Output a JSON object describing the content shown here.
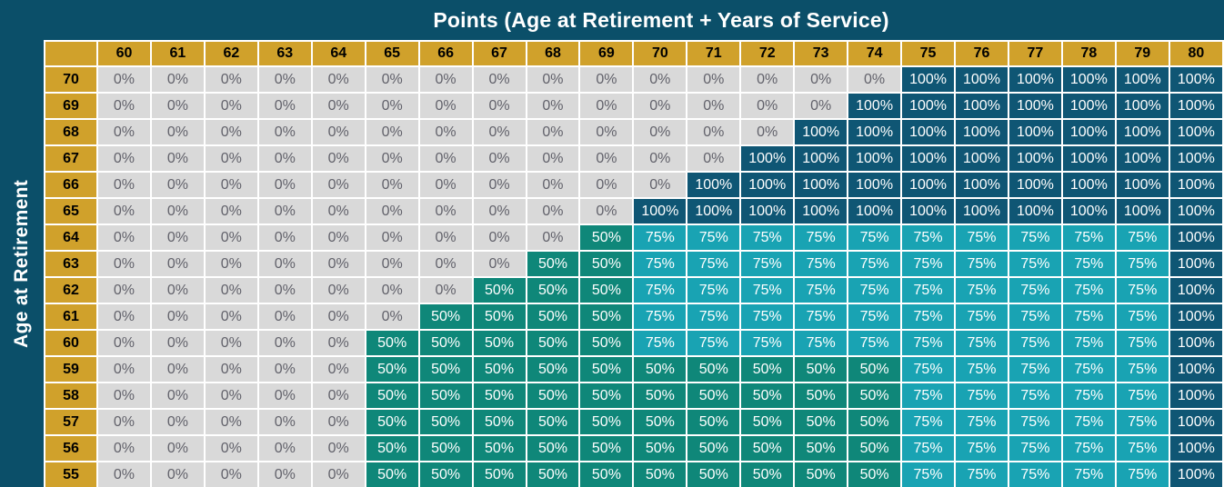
{
  "title": "Points (Age at Retirement + Years of Service)",
  "y_axis_label": "Age at Retirement",
  "colors": {
    "page_background": "#0B4F69",
    "header_gold": "#D0A12B",
    "header_text": "#000000",
    "grid_border": "#FFFFFF",
    "cell_0_bg": "#D9D9D9",
    "cell_0_text": "#62626B",
    "cell_50_bg": "#0F8779",
    "cell_75_bg": "#19A3B3",
    "cell_100_bg": "#0F5674",
    "cell_value_text": "#FFFFFF"
  },
  "chart_data": {
    "type": "heatmap",
    "title": "Points (Age at Retirement + Years of Service)",
    "x_label": "Points (Age at Retirement + Years of Service)",
    "y_label": "Age at Retirement",
    "columns": [
      "60",
      "61",
      "62",
      "63",
      "64",
      "65",
      "66",
      "67",
      "68",
      "69",
      "70",
      "71",
      "72",
      "73",
      "74",
      "75",
      "76",
      "77",
      "78",
      "79",
      "80"
    ],
    "rows": [
      {
        "age": "70",
        "values": [
          "0%",
          "0%",
          "0%",
          "0%",
          "0%",
          "0%",
          "0%",
          "0%",
          "0%",
          "0%",
          "0%",
          "0%",
          "0%",
          "0%",
          "0%",
          "100%",
          "100%",
          "100%",
          "100%",
          "100%",
          "100%"
        ]
      },
      {
        "age": "69",
        "values": [
          "0%",
          "0%",
          "0%",
          "0%",
          "0%",
          "0%",
          "0%",
          "0%",
          "0%",
          "0%",
          "0%",
          "0%",
          "0%",
          "0%",
          "100%",
          "100%",
          "100%",
          "100%",
          "100%",
          "100%",
          "100%"
        ]
      },
      {
        "age": "68",
        "values": [
          "0%",
          "0%",
          "0%",
          "0%",
          "0%",
          "0%",
          "0%",
          "0%",
          "0%",
          "0%",
          "0%",
          "0%",
          "0%",
          "100%",
          "100%",
          "100%",
          "100%",
          "100%",
          "100%",
          "100%",
          "100%"
        ]
      },
      {
        "age": "67",
        "values": [
          "0%",
          "0%",
          "0%",
          "0%",
          "0%",
          "0%",
          "0%",
          "0%",
          "0%",
          "0%",
          "0%",
          "0%",
          "100%",
          "100%",
          "100%",
          "100%",
          "100%",
          "100%",
          "100%",
          "100%",
          "100%"
        ]
      },
      {
        "age": "66",
        "values": [
          "0%",
          "0%",
          "0%",
          "0%",
          "0%",
          "0%",
          "0%",
          "0%",
          "0%",
          "0%",
          "0%",
          "100%",
          "100%",
          "100%",
          "100%",
          "100%",
          "100%",
          "100%",
          "100%",
          "100%",
          "100%"
        ]
      },
      {
        "age": "65",
        "values": [
          "0%",
          "0%",
          "0%",
          "0%",
          "0%",
          "0%",
          "0%",
          "0%",
          "0%",
          "0%",
          "100%",
          "100%",
          "100%",
          "100%",
          "100%",
          "100%",
          "100%",
          "100%",
          "100%",
          "100%",
          "100%"
        ]
      },
      {
        "age": "64",
        "values": [
          "0%",
          "0%",
          "0%",
          "0%",
          "0%",
          "0%",
          "0%",
          "0%",
          "0%",
          "50%",
          "75%",
          "75%",
          "75%",
          "75%",
          "75%",
          "75%",
          "75%",
          "75%",
          "75%",
          "75%",
          "100%"
        ]
      },
      {
        "age": "63",
        "values": [
          "0%",
          "0%",
          "0%",
          "0%",
          "0%",
          "0%",
          "0%",
          "0%",
          "50%",
          "50%",
          "75%",
          "75%",
          "75%",
          "75%",
          "75%",
          "75%",
          "75%",
          "75%",
          "75%",
          "75%",
          "100%"
        ]
      },
      {
        "age": "62",
        "values": [
          "0%",
          "0%",
          "0%",
          "0%",
          "0%",
          "0%",
          "0%",
          "50%",
          "50%",
          "50%",
          "75%",
          "75%",
          "75%",
          "75%",
          "75%",
          "75%",
          "75%",
          "75%",
          "75%",
          "75%",
          "100%"
        ]
      },
      {
        "age": "61",
        "values": [
          "0%",
          "0%",
          "0%",
          "0%",
          "0%",
          "0%",
          "50%",
          "50%",
          "50%",
          "50%",
          "75%",
          "75%",
          "75%",
          "75%",
          "75%",
          "75%",
          "75%",
          "75%",
          "75%",
          "75%",
          "100%"
        ]
      },
      {
        "age": "60",
        "values": [
          "0%",
          "0%",
          "0%",
          "0%",
          "0%",
          "50%",
          "50%",
          "50%",
          "50%",
          "50%",
          "75%",
          "75%",
          "75%",
          "75%",
          "75%",
          "75%",
          "75%",
          "75%",
          "75%",
          "75%",
          "100%"
        ]
      },
      {
        "age": "59",
        "values": [
          "0%",
          "0%",
          "0%",
          "0%",
          "0%",
          "50%",
          "50%",
          "50%",
          "50%",
          "50%",
          "50%",
          "50%",
          "50%",
          "50%",
          "50%",
          "75%",
          "75%",
          "75%",
          "75%",
          "75%",
          "100%"
        ]
      },
      {
        "age": "58",
        "values": [
          "0%",
          "0%",
          "0%",
          "0%",
          "0%",
          "50%",
          "50%",
          "50%",
          "50%",
          "50%",
          "50%",
          "50%",
          "50%",
          "50%",
          "50%",
          "75%",
          "75%",
          "75%",
          "75%",
          "75%",
          "100%"
        ]
      },
      {
        "age": "57",
        "values": [
          "0%",
          "0%",
          "0%",
          "0%",
          "0%",
          "50%",
          "50%",
          "50%",
          "50%",
          "50%",
          "50%",
          "50%",
          "50%",
          "50%",
          "50%",
          "75%",
          "75%",
          "75%",
          "75%",
          "75%",
          "100%"
        ]
      },
      {
        "age": "56",
        "values": [
          "0%",
          "0%",
          "0%",
          "0%",
          "0%",
          "50%",
          "50%",
          "50%",
          "50%",
          "50%",
          "50%",
          "50%",
          "50%",
          "50%",
          "50%",
          "75%",
          "75%",
          "75%",
          "75%",
          "75%",
          "100%"
        ]
      },
      {
        "age": "55",
        "values": [
          "0%",
          "0%",
          "0%",
          "0%",
          "0%",
          "50%",
          "50%",
          "50%",
          "50%",
          "50%",
          "50%",
          "50%",
          "50%",
          "50%",
          "50%",
          "75%",
          "75%",
          "75%",
          "75%",
          "75%",
          "100%"
        ]
      }
    ]
  }
}
